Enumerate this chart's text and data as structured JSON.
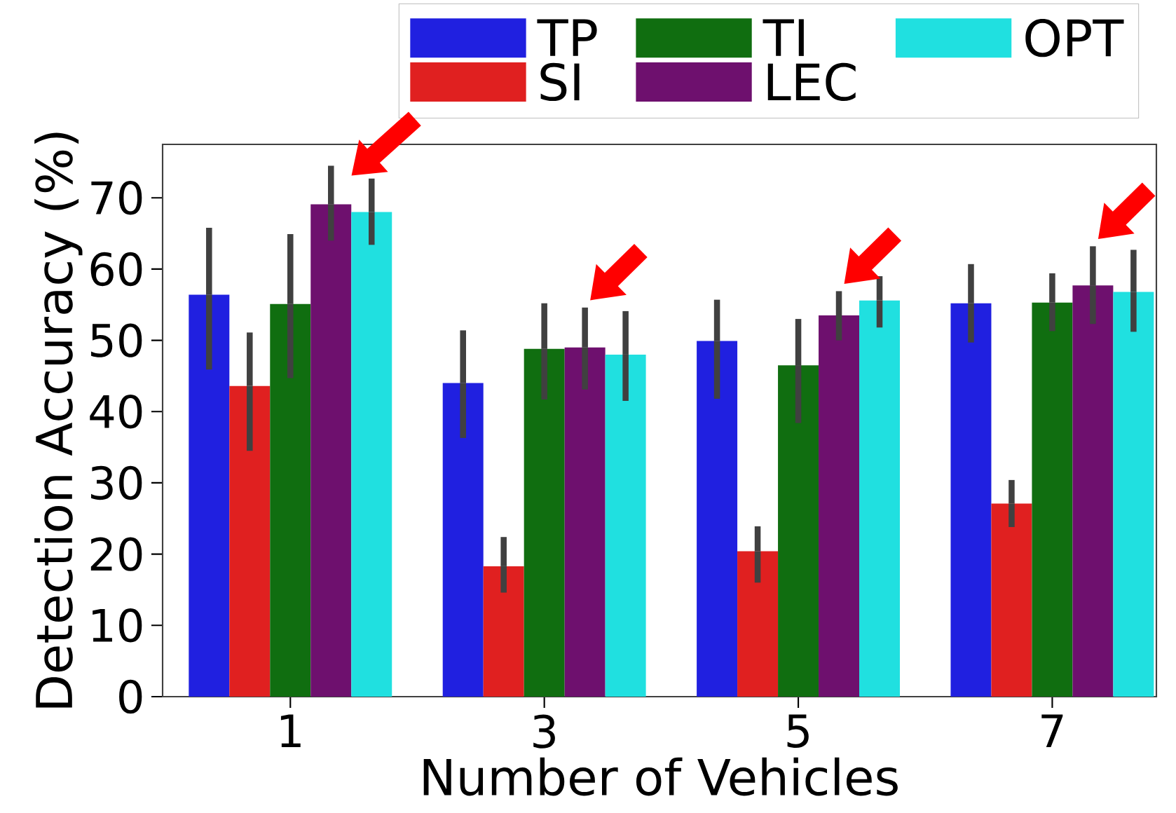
{
  "chart_data": {
    "type": "bar",
    "xlabel": "Number of Vehicles",
    "ylabel": "Detection Accuracy (%)",
    "categories": [
      "1",
      "3",
      "5",
      "7"
    ],
    "series": [
      {
        "name": "TP",
        "color": "#2020e0",
        "values": [
          56.4,
          44.0,
          49.9,
          55.2
        ],
        "errors": [
          [
            45.9,
            65.8
          ],
          [
            36.3,
            51.4
          ],
          [
            41.8,
            55.7
          ],
          [
            49.7,
            60.7
          ]
        ]
      },
      {
        "name": "SI",
        "color": "#e02020",
        "values": [
          43.6,
          18.3,
          20.4,
          27.1
        ],
        "errors": [
          [
            34.5,
            51.1
          ],
          [
            14.6,
            22.4
          ],
          [
            16.0,
            23.9
          ],
          [
            23.8,
            30.4
          ]
        ]
      },
      {
        "name": "TI",
        "color": "#106e10",
        "values": [
          55.1,
          48.8,
          46.5,
          55.3
        ],
        "errors": [
          [
            44.7,
            64.9
          ],
          [
            41.7,
            55.2
          ],
          [
            38.4,
            53.0
          ],
          [
            51.3,
            59.4
          ]
        ]
      },
      {
        "name": "LEC",
        "color": "#6e106e",
        "values": [
          69.1,
          49.0,
          53.5,
          57.7
        ],
        "errors": [
          [
            64.0,
            74.5
          ],
          [
            43.1,
            54.6
          ],
          [
            50.0,
            56.9
          ],
          [
            52.3,
            63.2
          ]
        ]
      },
      {
        "name": "OPT",
        "color": "#20e0e0",
        "values": [
          68.0,
          48.0,
          55.6,
          56.8
        ],
        "errors": [
          [
            63.4,
            72.7
          ],
          [
            41.5,
            54.1
          ],
          [
            51.8,
            59.0
          ],
          [
            51.2,
            62.7
          ]
        ]
      }
    ],
    "ylim": [
      0,
      77.5
    ],
    "yticks": [
      0,
      10,
      20,
      30,
      40,
      50,
      60,
      70
    ],
    "grid": false,
    "legend": "top"
  }
}
